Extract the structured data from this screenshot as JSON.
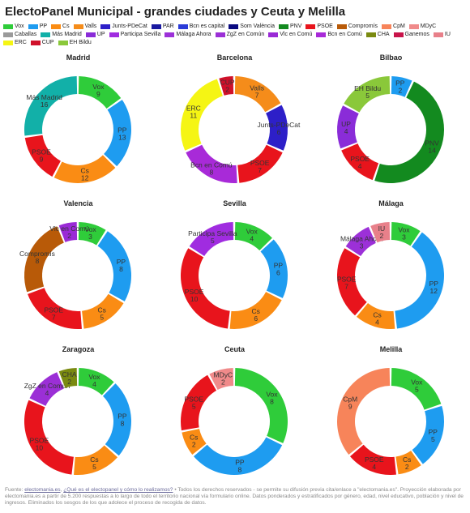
{
  "title": "ElectoPanel Municipal - grandes ciudades y Ceuta y Melilla",
  "legend": [
    {
      "label": "Vox",
      "color": "#2fcc3a"
    },
    {
      "label": "PP",
      "color": "#1e9cf0"
    },
    {
      "label": "Cs",
      "color": "#fa8c14"
    },
    {
      "label": "Valls",
      "color": "#f58c1a"
    },
    {
      "label": "Junts-PDeCat",
      "color": "#2d1fc8"
    },
    {
      "label": "PAR",
      "color": "#1a1aa0"
    },
    {
      "label": "Bcn es capital",
      "color": "#2b3bd8"
    },
    {
      "label": "Som València",
      "color": "#0a0a80"
    },
    {
      "label": "PNV",
      "color": "#138a1f"
    },
    {
      "label": "PSOE",
      "color": "#e8141c"
    },
    {
      "label": "Compromís",
      "color": "#b85a08"
    },
    {
      "label": "CpM",
      "color": "#f7845a"
    },
    {
      "label": "MDyC",
      "color": "#f08a8a"
    },
    {
      "label": "Caballas",
      "color": "#9a9a9a"
    },
    {
      "label": "Más Madrid",
      "color": "#12b0a8"
    },
    {
      "label": "UP",
      "color": "#8a2cd8"
    },
    {
      "label": "Participa Sevilla",
      "color": "#a02ce0"
    },
    {
      "label": "Málaga Ahora",
      "color": "#9c30d8"
    },
    {
      "label": "ZgZ en Común",
      "color": "#9b2fd6"
    },
    {
      "label": "Vlc en Comú",
      "color": "#9a2ad6"
    },
    {
      "label": "Bcn en Comú",
      "color": "#a82ad8"
    },
    {
      "label": "CHA",
      "color": "#7a8a10"
    },
    {
      "label": "Ganemos",
      "color": "#c8144a"
    },
    {
      "label": "IU",
      "color": "#e8808a"
    },
    {
      "label": "ERC",
      "color": "#f5f514"
    },
    {
      "label": "CUP",
      "color": "#d0102a"
    },
    {
      "label": "EH Bildu",
      "color": "#8ac83a"
    }
  ],
  "chart_data": [
    {
      "type": "pie",
      "title": "Madrid",
      "slices": [
        {
          "label": "Vox",
          "value": 9,
          "color": "#2fcc3a"
        },
        {
          "label": "PP",
          "value": 13,
          "color": "#1e9cf0"
        },
        {
          "label": "Cs",
          "value": 12,
          "color": "#fa8c14"
        },
        {
          "label": "PSOE",
          "value": 9,
          "color": "#e8141c"
        },
        {
          "label": "Más Madrid",
          "value": 16,
          "color": "#12b0a8"
        }
      ]
    },
    {
      "type": "pie",
      "title": "Barcelona",
      "slices": [
        {
          "label": "Valls",
          "value": 7,
          "color": "#f58c1a"
        },
        {
          "label": "Junts-PDeCat",
          "value": 6,
          "color": "#2d1fc8"
        },
        {
          "label": "PSOE",
          "value": 7,
          "color": "#e8141c"
        },
        {
          "label": "Bcn en Comú",
          "value": 8,
          "color": "#a82ad8"
        },
        {
          "label": "ERC",
          "value": 11,
          "color": "#f5f514"
        },
        {
          "label": "CUP",
          "value": 2,
          "color": "#d0102a"
        }
      ]
    },
    {
      "type": "pie",
      "title": "Bilbao",
      "slices": [
        {
          "label": "PP",
          "value": 2,
          "color": "#1e9cf0"
        },
        {
          "label": "PNV",
          "value": 14,
          "color": "#138a1f"
        },
        {
          "label": "PSOE",
          "value": 4,
          "color": "#e8141c"
        },
        {
          "label": "UP",
          "value": 4,
          "color": "#8a2cd8"
        },
        {
          "label": "EH Bildu",
          "value": 5,
          "color": "#8ac83a"
        }
      ]
    },
    {
      "type": "pie",
      "title": "Valencia",
      "slices": [
        {
          "label": "Vox",
          "value": 3,
          "color": "#2fcc3a"
        },
        {
          "label": "PP",
          "value": 8,
          "color": "#1e9cf0"
        },
        {
          "label": "Cs",
          "value": 5,
          "color": "#fa8c14"
        },
        {
          "label": "PSOE",
          "value": 7,
          "color": "#e8141c"
        },
        {
          "label": "Compromís",
          "value": 8,
          "color": "#b85a08"
        },
        {
          "label": "Vlc en Comú",
          "value": 2,
          "color": "#9a2ad6"
        }
      ]
    },
    {
      "type": "pie",
      "title": "Sevilla",
      "slices": [
        {
          "label": "Vox",
          "value": 4,
          "color": "#2fcc3a"
        },
        {
          "label": "PP",
          "value": 6,
          "color": "#1e9cf0"
        },
        {
          "label": "Cs",
          "value": 6,
          "color": "#fa8c14"
        },
        {
          "label": "PSOE",
          "value": 10,
          "color": "#e8141c"
        },
        {
          "label": "Participa Sevilla",
          "value": 5,
          "color": "#a02ce0"
        }
      ]
    },
    {
      "type": "pie",
      "title": "Málaga",
      "slices": [
        {
          "label": "Vox",
          "value": 3,
          "color": "#2fcc3a"
        },
        {
          "label": "PP",
          "value": 12,
          "color": "#1e9cf0"
        },
        {
          "label": "Cs",
          "value": 4,
          "color": "#fa8c14"
        },
        {
          "label": "PSOE",
          "value": 7,
          "color": "#e8141c"
        },
        {
          "label": "Málaga Ahora",
          "value": 3,
          "color": "#9c30d8"
        },
        {
          "label": "IU",
          "value": 2,
          "color": "#e8808a"
        }
      ]
    },
    {
      "type": "pie",
      "title": "Zaragoza",
      "slices": [
        {
          "label": "Vox",
          "value": 4,
          "color": "#2fcc3a"
        },
        {
          "label": "PP",
          "value": 8,
          "color": "#1e9cf0"
        },
        {
          "label": "Cs",
          "value": 5,
          "color": "#fa8c14"
        },
        {
          "label": "PSOE",
          "value": 10,
          "color": "#e8141c"
        },
        {
          "label": "ZgZ en Común",
          "value": 4,
          "color": "#9b2fd6"
        },
        {
          "label": "CHA",
          "value": 2,
          "color": "#7a8a10"
        }
      ]
    },
    {
      "type": "pie",
      "title": "Ceuta",
      "slices": [
        {
          "label": "Vox",
          "value": 8,
          "color": "#2fcc3a"
        },
        {
          "label": "PP",
          "value": 8,
          "color": "#1e9cf0"
        },
        {
          "label": "Cs",
          "value": 2,
          "color": "#fa8c14"
        },
        {
          "label": "PSOE",
          "value": 5,
          "color": "#e8141c"
        },
        {
          "label": "MDyC",
          "value": 2,
          "color": "#f08a8a"
        }
      ]
    },
    {
      "type": "pie",
      "title": "Melilla",
      "slices": [
        {
          "label": "Vox",
          "value": 5,
          "color": "#2fcc3a"
        },
        {
          "label": "PP",
          "value": 5,
          "color": "#1e9cf0"
        },
        {
          "label": "Cs",
          "value": 2,
          "color": "#fa8c14"
        },
        {
          "label": "PSOE",
          "value": 4,
          "color": "#e8141c"
        },
        {
          "label": "CpM",
          "value": 9,
          "color": "#f7845a"
        }
      ]
    }
  ],
  "footer": {
    "prefix": "Fuente: ",
    "link1": "electomania.es",
    "sep": ", ",
    "link2": "¿Qué es el electopanel y cómo lo realizamos?",
    "text": " • Todos los derechos reservados - se permite su difusión previa cita/enlace a \"electomania.es\". Proyección elaborada por electomania.es a partir de 5.200 respuestas a lo largo de todo el territorio nacional vía formulario online. Datos ponderados y estratificados por género, edad, nivel educativo, población y nivel de ingresos. Eliminados los sesgos de los que adolece el proceso de recogida de datos."
  }
}
